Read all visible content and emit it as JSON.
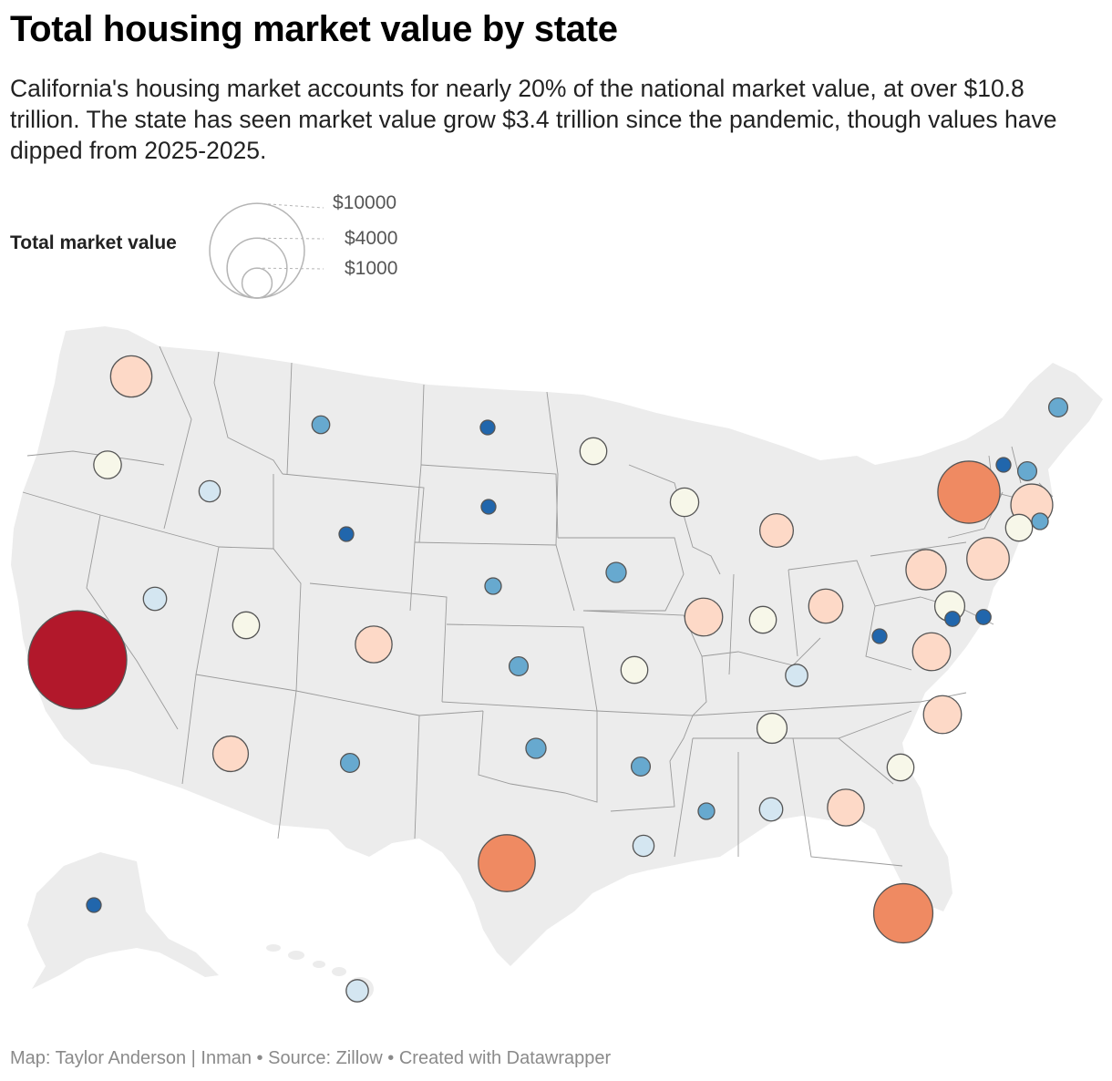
{
  "title": "Total housing market value by state",
  "subtitle": "California's housing market accounts for nearly 20% of the national market value, at over $10.8 trillion. The state has seen market value grow $3.4 trillion since the pandemic, though values have dipped from 2025-2025.",
  "legend": {
    "title": "Total market value",
    "items": [
      {
        "label": "$10000",
        "value": 10000
      },
      {
        "label": "$4000",
        "value": 4000
      },
      {
        "label": "$1000",
        "value": 1000
      }
    ]
  },
  "footer": {
    "map_credit": "Map: Taylor Anderson | Inman",
    "separator": " • ",
    "source": "Source: Zillow",
    "tool": "Created with Datawrapper"
  },
  "colors": {
    "darkest_red": "#b2182b",
    "orange": "#ef8a62",
    "peach": "#fdd9c7",
    "cream": "#f7f7e9",
    "light_blue": "#d4e6f1",
    "mid_blue": "#67a9cf",
    "dark_blue": "#2166ac",
    "land": "#ececec",
    "border": "#9a9a9a"
  },
  "chart_data": {
    "type": "proportional-symbol-map",
    "unit": "billion USD (total market value)",
    "states": [
      {
        "state": "CA",
        "value": 10800,
        "color": "#b2182b"
      },
      {
        "state": "TX",
        "value": 3600,
        "color": "#ef8a62"
      },
      {
        "state": "FL",
        "value": 3900,
        "color": "#ef8a62"
      },
      {
        "state": "NY",
        "value": 4300,
        "color": "#ef8a62"
      },
      {
        "state": "WA",
        "value": 1900,
        "color": "#fdd9c7"
      },
      {
        "state": "NJ",
        "value": 2000,
        "color": "#fdd9c7"
      },
      {
        "state": "MA",
        "value": 1950,
        "color": "#fdd9c7"
      },
      {
        "state": "PA",
        "value": 1800,
        "color": "#fdd9c7"
      },
      {
        "state": "IL",
        "value": 1600,
        "color": "#fdd9c7"
      },
      {
        "state": "VA",
        "value": 1600,
        "color": "#fdd9c7"
      },
      {
        "state": "NC",
        "value": 1600,
        "color": "#fdd9c7"
      },
      {
        "state": "GA",
        "value": 1500,
        "color": "#fdd9c7"
      },
      {
        "state": "AZ",
        "value": 1400,
        "color": "#fdd9c7"
      },
      {
        "state": "CO",
        "value": 1500,
        "color": "#fdd9c7"
      },
      {
        "state": "OH",
        "value": 1300,
        "color": "#fdd9c7"
      },
      {
        "state": "MI",
        "value": 1250,
        "color": "#fdd9c7"
      },
      {
        "state": "MD",
        "value": 1000,
        "color": "#f7f7e9"
      },
      {
        "state": "OR",
        "value": 850,
        "color": "#f7f7e9"
      },
      {
        "state": "MN",
        "value": 800,
        "color": "#f7f7e9"
      },
      {
        "state": "WI",
        "value": 900,
        "color": "#f7f7e9"
      },
      {
        "state": "TN",
        "value": 1000,
        "color": "#f7f7e9"
      },
      {
        "state": "SC",
        "value": 800,
        "color": "#f7f7e9"
      },
      {
        "state": "MO",
        "value": 800,
        "color": "#f7f7e9"
      },
      {
        "state": "IN",
        "value": 800,
        "color": "#f7f7e9"
      },
      {
        "state": "UT",
        "value": 800,
        "color": "#f7f7e9"
      },
      {
        "state": "CT",
        "value": 800,
        "color": "#f7f7e9"
      },
      {
        "state": "NV",
        "value": 600,
        "color": "#d4e6f1"
      },
      {
        "state": "ID",
        "value": 500,
        "color": "#d4e6f1"
      },
      {
        "state": "KY",
        "value": 550,
        "color": "#d4e6f1"
      },
      {
        "state": "AL",
        "value": 600,
        "color": "#d4e6f1"
      },
      {
        "state": "LA",
        "value": 500,
        "color": "#d4e6f1"
      },
      {
        "state": "HI",
        "value": 550,
        "color": "#d4e6f1"
      },
      {
        "state": "MT",
        "value": 350,
        "color": "#67a9cf"
      },
      {
        "state": "NE",
        "value": 300,
        "color": "#67a9cf"
      },
      {
        "state": "IA",
        "value": 450,
        "color": "#67a9cf"
      },
      {
        "state": "KS",
        "value": 400,
        "color": "#67a9cf"
      },
      {
        "state": "OK",
        "value": 450,
        "color": "#67a9cf"
      },
      {
        "state": "NM",
        "value": 400,
        "color": "#67a9cf"
      },
      {
        "state": "AR",
        "value": 400,
        "color": "#67a9cf"
      },
      {
        "state": "MS",
        "value": 300,
        "color": "#67a9cf"
      },
      {
        "state": "ME",
        "value": 400,
        "color": "#67a9cf"
      },
      {
        "state": "NH",
        "value": 400,
        "color": "#67a9cf"
      },
      {
        "state": "RI",
        "value": 300,
        "color": "#67a9cf"
      },
      {
        "state": "ND",
        "value": 150,
        "color": "#2166ac"
      },
      {
        "state": "SD",
        "value": 200,
        "color": "#2166ac"
      },
      {
        "state": "WY",
        "value": 200,
        "color": "#2166ac"
      },
      {
        "state": "WV",
        "value": 200,
        "color": "#2166ac"
      },
      {
        "state": "AK",
        "value": 200,
        "color": "#2166ac"
      },
      {
        "state": "VT",
        "value": 200,
        "color": "#2166ac"
      },
      {
        "state": "DE",
        "value": 250,
        "color": "#2166ac"
      },
      {
        "state": "DC",
        "value": 250,
        "color": "#2166ac"
      }
    ]
  }
}
